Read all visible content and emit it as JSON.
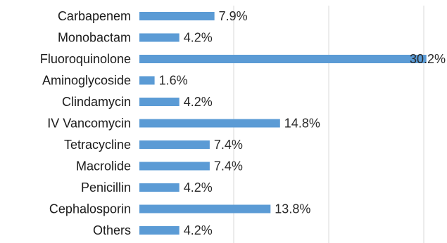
{
  "chart_data": {
    "type": "bar",
    "orientation": "horizontal",
    "categories": [
      "Carbapenem",
      "Monobactam",
      "Fluoroquinolone",
      "Aminoglycoside",
      "Clindamycin",
      "IV Vancomycin",
      "Tetracycline",
      "Macrolide",
      "Penicillin",
      "Cephalosporin",
      "Others"
    ],
    "values": [
      7.9,
      4.2,
      30.2,
      1.6,
      4.2,
      14.8,
      7.4,
      7.4,
      4.2,
      13.8,
      4.2
    ],
    "data_labels": [
      "7.9%",
      "4.2%",
      "30.2%",
      "1.6%",
      "4.2%",
      "14.8%",
      "7.4%",
      "7.4%",
      "4.2%",
      "13.8%",
      "4.2%"
    ],
    "xlim": [
      0,
      32
    ],
    "grid": true,
    "bar_color": "#5b9bd5"
  }
}
